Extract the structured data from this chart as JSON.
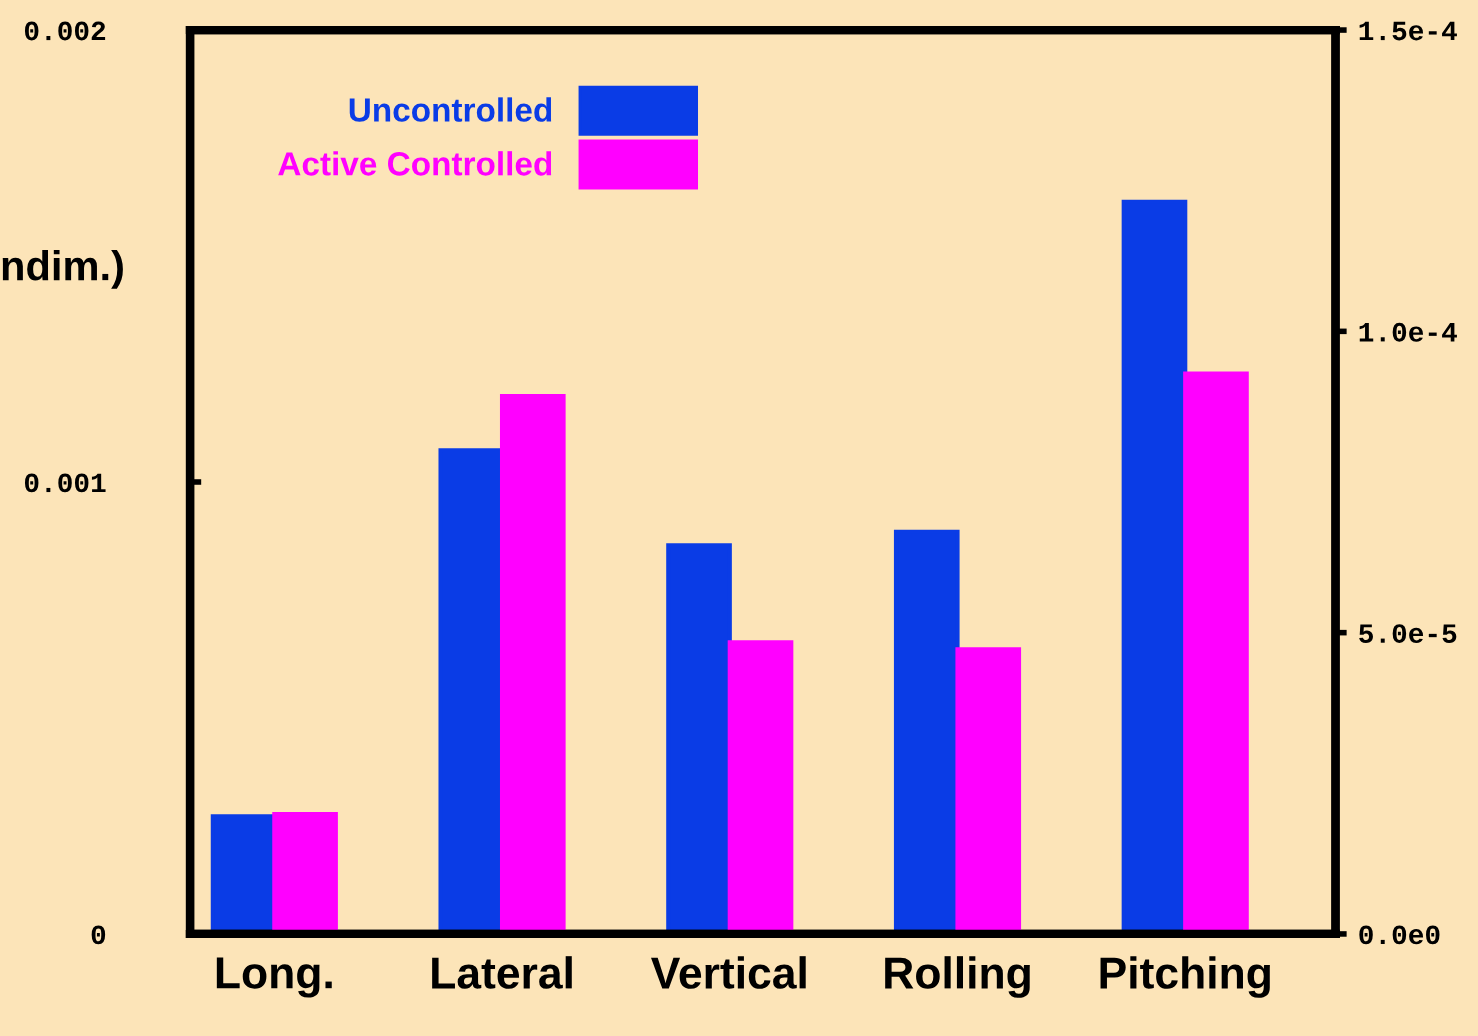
{
  "chart_data": {
    "type": "bar",
    "ylabel": "ndim.)",
    "categories": [
      "Long.",
      "Lateral",
      "Vertical",
      "Rolling",
      "Pitching"
    ],
    "series": [
      {
        "name": "Uncontrolled",
        "color": "#0a3ce6",
        "values": [
          0.00026,
          0.00107,
          0.00086,
          0.00089,
          0.00162
        ]
      },
      {
        "name": "Active Controlled",
        "color": "#ff00ff",
        "values": [
          0.000265,
          0.00119,
          0.000645,
          0.00063,
          0.00124
        ]
      }
    ],
    "ylim": [
      0,
      0.002
    ],
    "yticks": [
      0,
      0.001,
      0.002
    ],
    "y2lim": [
      0,
      0.00015
    ],
    "y2ticks": [
      {
        "value": 0,
        "label": "0.0e0"
      },
      {
        "value": 5e-05,
        "label": "5.0e-5"
      },
      {
        "value": 0.0001,
        "label": "1.0e-4"
      },
      {
        "value": 0.00015,
        "label": "1.5e-4"
      }
    ],
    "legend": "top left",
    "grid": false
  }
}
